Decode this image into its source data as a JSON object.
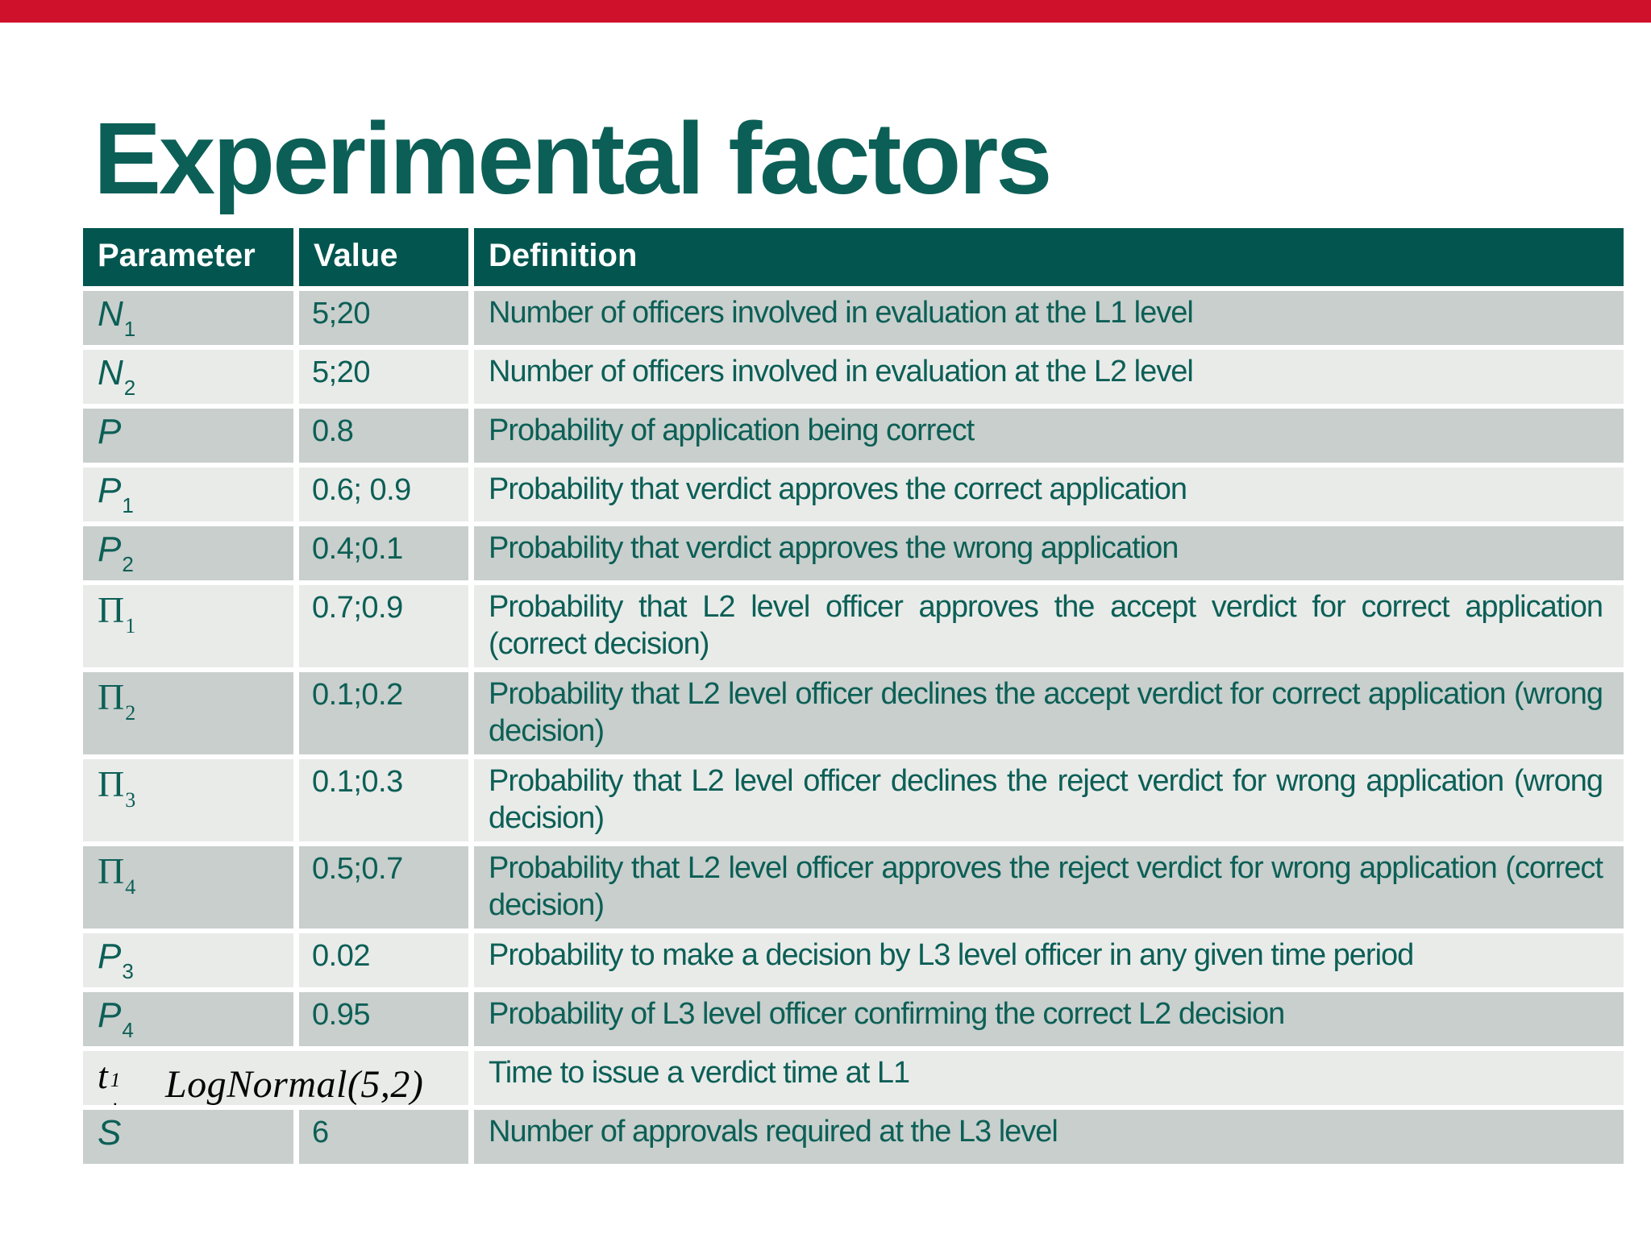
{
  "slide": {
    "title": "Experimental factors",
    "colors": {
      "accent-red": "#d0112b",
      "teal-bg": "#02564f",
      "teal-text": "#0c5f56",
      "row-dark": "#c8cfcc",
      "row-light": "#e9ebe9",
      "equation-black": "#060606"
    }
  },
  "table": {
    "headers": [
      "Parameter",
      "Value",
      "Definition"
    ],
    "rows": [
      {
        "param": "N",
        "sub": "1",
        "font": "sans",
        "value": "5;20",
        "def": "Number of officers involved in evaluation at the L1 level",
        "shade": "dark",
        "tall": false
      },
      {
        "param": "N",
        "sub": "2",
        "font": "sans",
        "value": "5;20",
        "def": "Number of officers involved in evaluation at the L2 level",
        "shade": "light",
        "tall": false
      },
      {
        "param": "P",
        "sub": "",
        "font": "sans",
        "value": "0.8",
        "def": "Probability of application being correct",
        "shade": "dark",
        "tall": false
      },
      {
        "param": "P",
        "sub": "1",
        "font": "sans",
        "value": "0.6; 0.9",
        "def": "Probability that verdict approves the correct application",
        "shade": "light",
        "tall": false
      },
      {
        "param": "P",
        "sub": "2",
        "font": "sans",
        "value": "0.4;0.1",
        "def": "Probability that verdict approves the wrong application",
        "shade": "dark",
        "tall": false
      },
      {
        "param": "Π",
        "sub": "1",
        "font": "serif",
        "value": "0.7;0.9",
        "def": "Probability that L2 level officer approves the accept verdict for correct application (correct decision)",
        "shade": "light",
        "tall": true
      },
      {
        "param": "Π",
        "sub": "2",
        "font": "serif",
        "value": "0.1;0.2",
        "def": "Probability that L2 level officer declines the accept verdict for correct application (wrong decision)",
        "shade": "dark",
        "tall": true
      },
      {
        "param": "Π",
        "sub": "3",
        "font": "serif",
        "value": "0.1;0.3",
        "def": "Probability that L2 level officer declines the reject verdict for wrong application (wrong decision)",
        "shade": "light",
        "tall": true
      },
      {
        "param": "Π",
        "sub": "4",
        "font": "serif",
        "value": "0.5;0.7",
        "def": "Probability that L2 level officer approves the reject verdict for wrong application (correct decision)",
        "shade": "dark",
        "tall": true
      },
      {
        "param": "P",
        "sub": "3",
        "font": "sans",
        "value": "0.02",
        "def": "Probability to make a decision by L3 level officer in any given time period",
        "shade": "light",
        "tall": false
      },
      {
        "param": "P",
        "sub": "4",
        "font": "sans",
        "value": "0.95",
        "def": "Probability of L3 level officer confirming the correct L2 decision",
        "shade": "dark",
        "tall": false
      },
      {
        "param": "t",
        "sub": "i",
        "sup": "1",
        "font": "math",
        "equation": true,
        "value": "LogNormal(5,2)",
        "def": "Time to issue a verdict time at L1",
        "shade": "light",
        "tall": false
      },
      {
        "param": "S",
        "sub": "",
        "font": "sans",
        "value": "6",
        "def": "Number of approvals required at the L3 level",
        "shade": "dark",
        "tall": false
      }
    ]
  }
}
